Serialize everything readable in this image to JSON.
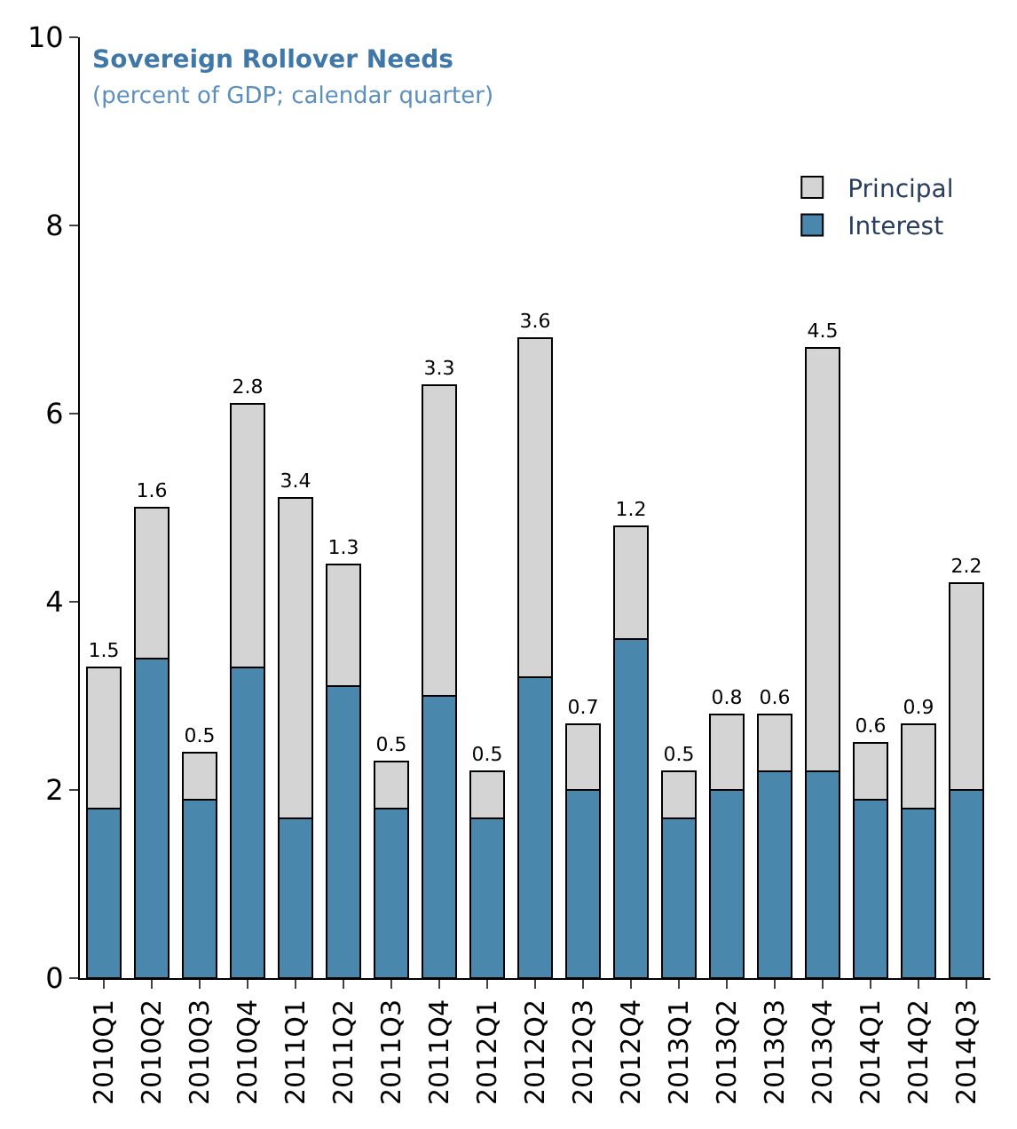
{
  "chart_data": {
    "type": "bar",
    "title": "Sovereign Rollover Needs",
    "subtitle": "(percent of GDP; calendar quarter)",
    "categories": [
      "2010Q1",
      "2010Q2",
      "2010Q3",
      "2010Q4",
      "2011Q1",
      "2011Q2",
      "2011Q3",
      "2011Q4",
      "2012Q1",
      "2012Q2",
      "2012Q3",
      "2012Q4",
      "2013Q1",
      "2013Q2",
      "2013Q3",
      "2013Q4",
      "2014Q1",
      "2014Q2",
      "2014Q3"
    ],
    "stacked": true,
    "series": [
      {
        "name": "Interest",
        "color": "#4a87ad",
        "values": [
          1.8,
          3.4,
          1.9,
          3.3,
          1.7,
          3.1,
          1.8,
          3.0,
          1.7,
          3.2,
          2.0,
          3.6,
          1.7,
          2.0,
          2.2,
          2.2,
          1.9,
          1.8,
          2.0
        ]
      },
      {
        "name": "Principal",
        "color": "#d4d4d4",
        "values": [
          1.5,
          1.6,
          0.5,
          2.8,
          3.4,
          1.3,
          0.5,
          3.3,
          0.5,
          3.6,
          0.7,
          1.2,
          0.5,
          0.8,
          0.6,
          4.5,
          0.6,
          0.9,
          2.2
        ],
        "value_labels": [
          "1.5",
          "1.6",
          "0.5",
          "2.8",
          "3.4",
          "1.3",
          "0.5",
          "3.3",
          "0.5",
          "3.6",
          "0.7",
          "1.2",
          "0.5",
          "0.8",
          "0.6",
          "4.5",
          "0.6",
          "0.9",
          "2.2"
        ]
      }
    ],
    "ylim": [
      0,
      10
    ],
    "yticks": [
      0,
      2,
      4,
      6,
      8,
      10
    ],
    "legend": "top right"
  }
}
